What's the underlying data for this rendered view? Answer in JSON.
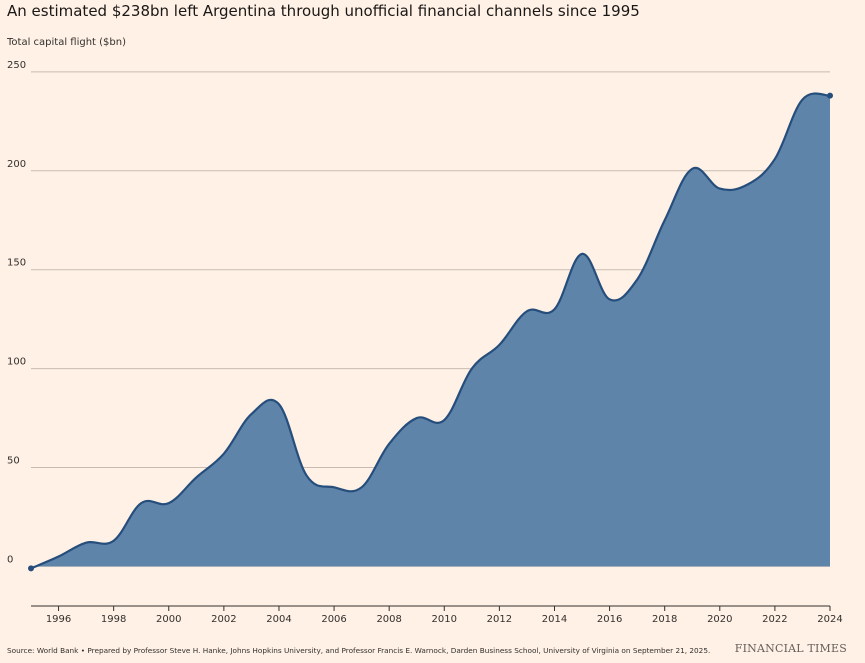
{
  "chart_data": {
    "type": "area",
    "title": "An estimated $238bn left Argentina through unofficial financial channels since 1995",
    "ylabel": "Total capital flight ($bn)",
    "xlabel": "",
    "x": [
      1995,
      1996,
      1997,
      1998,
      1999,
      2000,
      2001,
      2002,
      2003,
      2004,
      2005,
      2006,
      2007,
      2008,
      2009,
      2010,
      2011,
      2012,
      2013,
      2014,
      2015,
      2016,
      2017,
      2018,
      2019,
      2020,
      2021,
      2022,
      2023,
      2024
    ],
    "series": [
      {
        "values": [
          -1,
          5,
          12,
          13,
          32,
          32,
          45,
          57,
          77,
          82,
          46,
          40,
          40,
          62,
          75,
          74,
          100,
          112,
          129,
          130,
          158,
          135,
          145,
          175,
          201,
          191,
          193,
          206,
          236,
          238
        ],
        "color": "#5f84aa",
        "line_color": "#264e7c"
      }
    ],
    "xticks": [
      "1996",
      "1998",
      "2000",
      "2002",
      "2004",
      "2006",
      "2008",
      "2010",
      "2012",
      "2014",
      "2016",
      "2018",
      "2020",
      "2022",
      "2024"
    ],
    "yticks": [
      "0",
      "50",
      "100",
      "150",
      "200",
      "250"
    ],
    "xlim": [
      1995,
      2024
    ],
    "ylim": [
      -20,
      255
    ],
    "grid": "horizontal"
  },
  "footer": {
    "source": "Source: World Bank • Prepared by Professor Steve H. Hanke, Johns Hopkins University, and Professor Francis E. Warnock, Darden Business School, University of Virginia on September 21, 2025.",
    "brand": "FINANCIAL TIMES"
  },
  "colors": {
    "background": "#fff1e5",
    "grid": "#c8bcb0",
    "axis": "#33302e"
  }
}
